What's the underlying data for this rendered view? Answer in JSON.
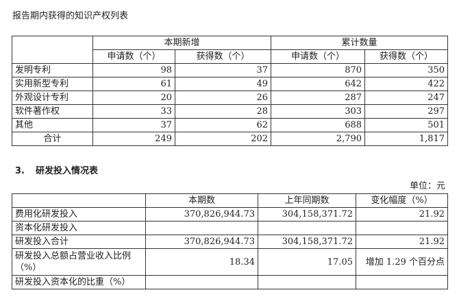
{
  "ip_table": {
    "title": "报告期内获得的知识产权列表",
    "group_headers": [
      "本期新增",
      "累计数量"
    ],
    "sub_headers": [
      "申请数（个）",
      "获得数（个）",
      "申请数（个）",
      "获得数（个）"
    ],
    "rows": [
      {
        "label": "发明专利",
        "values": [
          "98",
          "37",
          "870",
          "350"
        ]
      },
      {
        "label": "实用新型专利",
        "values": [
          "61",
          "49",
          "642",
          "422"
        ]
      },
      {
        "label": "外观设计专利",
        "values": [
          "20",
          "26",
          "287",
          "247"
        ]
      },
      {
        "label": "软件著作权",
        "values": [
          "33",
          "28",
          "303",
          "297"
        ]
      },
      {
        "label": "其他",
        "values": [
          "37",
          "62",
          "688",
          "501"
        ]
      },
      {
        "label": "合计",
        "values": [
          "249",
          "202",
          "2,790",
          "1,817"
        ]
      }
    ]
  },
  "rd_table": {
    "section_number": "3.",
    "title": "研发投入情况表",
    "unit": "单位：元",
    "headers": [
      "本期数",
      "上年同期数",
      "变化幅度（%）"
    ],
    "rows": [
      {
        "label": "费用化研发投入",
        "values": [
          "370,826,944.73",
          "304,158,371.72",
          "21.92"
        ]
      },
      {
        "label": "资本化研发投入",
        "values": [
          "",
          "",
          ""
        ]
      },
      {
        "label": "研发投入合计",
        "values": [
          "370,826,944.73",
          "304,158,371.72",
          "21.92"
        ]
      },
      {
        "label": "研发投入总额占营业收入比例（%）",
        "values": [
          "18.34",
          "17.05",
          "增加 1.29 个百分点"
        ]
      },
      {
        "label": "研发投入资本化的比重（%）",
        "values": [
          "",
          "",
          ""
        ]
      }
    ]
  }
}
